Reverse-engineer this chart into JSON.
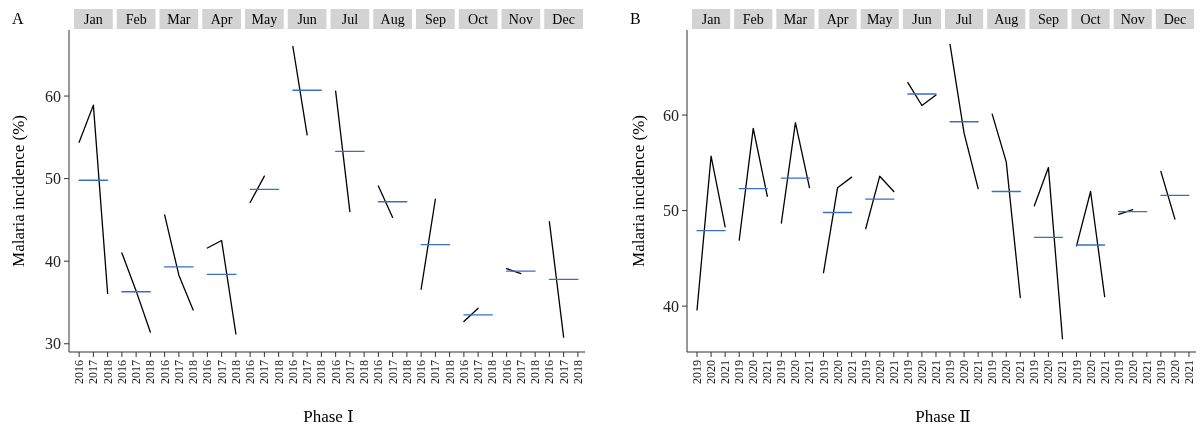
{
  "chart_data": [
    {
      "type": "line",
      "title": "A",
      "annotations": [
        "Jan",
        "Feb",
        "Mar",
        "Apr",
        "May",
        "Jun",
        "Jul",
        "Aug",
        "Sep",
        "Oct",
        "Nov",
        "Dec"
      ],
      "xlabel": "Phase Ⅰ",
      "ylabel": "Malaria incidence (%)",
      "legend": false,
      "grid": false,
      "ylim": [
        29,
        68
      ],
      "yticks": [
        30,
        40,
        50,
        60
      ],
      "categories": [
        "2016",
        "2017",
        "2018",
        "2016",
        "2017",
        "2018",
        "2016",
        "2017",
        "2018",
        "2016",
        "2017",
        "2018",
        "2016",
        "2017",
        "2018",
        "2016",
        "2017",
        "2018",
        "2016",
        "2017",
        "2018",
        "2016",
        "2017",
        "2018",
        "2016",
        "2017",
        "2018",
        "2016",
        "2017",
        "2018",
        "2016",
        "2017",
        "2018",
        "2016",
        "2017",
        "2018"
      ],
      "series": [
        {
          "color": "#000000",
          "values": [
            54.4,
            58.9,
            36.1,
            null,
            null,
            null,
            null,
            null,
            null,
            null,
            null,
            null,
            null,
            null,
            null,
            null,
            null,
            null,
            null,
            null,
            null,
            null,
            null,
            null,
            null,
            null,
            null,
            null,
            null,
            null,
            null,
            null,
            null,
            null,
            null,
            null
          ]
        },
        {
          "color": "#000000",
          "values": [
            null,
            null,
            null,
            41.0,
            36.4,
            31.4,
            null,
            null,
            null,
            null,
            null,
            null,
            null,
            null,
            null,
            null,
            null,
            null,
            null,
            null,
            null,
            null,
            null,
            null,
            null,
            null,
            null,
            null,
            null,
            null,
            null,
            null,
            null,
            null,
            null,
            null
          ]
        },
        {
          "color": "#000000",
          "values": [
            null,
            null,
            null,
            null,
            null,
            null,
            45.6,
            38.3,
            34.1,
            null,
            null,
            null,
            null,
            null,
            null,
            null,
            null,
            null,
            null,
            null,
            null,
            null,
            null,
            null,
            null,
            null,
            null,
            null,
            null,
            null,
            null,
            null,
            null,
            null,
            null,
            null
          ]
        },
        {
          "color": "#000000",
          "values": [
            null,
            null,
            null,
            null,
            null,
            null,
            null,
            null,
            null,
            41.6,
            42.5,
            31.2,
            null,
            null,
            null,
            null,
            null,
            null,
            null,
            null,
            null,
            null,
            null,
            null,
            null,
            null,
            null,
            null,
            null,
            null,
            null,
            null,
            null,
            null,
            null,
            null
          ]
        },
        {
          "color": "#000000",
          "values": [
            null,
            null,
            null,
            null,
            null,
            null,
            null,
            null,
            null,
            null,
            null,
            null,
            47.1,
            50.3,
            null,
            null,
            null,
            null,
            null,
            null,
            null,
            null,
            null,
            null,
            null,
            null,
            null,
            null,
            null,
            null,
            null,
            null,
            null,
            null,
            null,
            null
          ]
        },
        {
          "color": "#000000",
          "values": [
            null,
            null,
            null,
            null,
            null,
            null,
            null,
            null,
            null,
            null,
            null,
            null,
            null,
            null,
            null,
            66.0,
            55.3,
            null,
            null,
            null,
            null,
            null,
            null,
            null,
            null,
            null,
            null,
            null,
            null,
            null,
            null,
            null,
            null,
            null,
            null,
            null
          ]
        },
        {
          "color": "#000000",
          "values": [
            null,
            null,
            null,
            null,
            null,
            null,
            null,
            null,
            null,
            null,
            null,
            null,
            null,
            null,
            null,
            null,
            null,
            null,
            60.6,
            46.0,
            null,
            null,
            null,
            null,
            null,
            null,
            null,
            null,
            null,
            null,
            null,
            null,
            null,
            null,
            null,
            null
          ]
        },
        {
          "color": "#000000",
          "values": [
            null,
            null,
            null,
            null,
            null,
            null,
            null,
            null,
            null,
            null,
            null,
            null,
            null,
            null,
            null,
            null,
            null,
            null,
            null,
            null,
            null,
            49.1,
            45.3,
            null,
            null,
            null,
            null,
            null,
            null,
            null,
            null,
            null,
            null,
            null,
            null,
            null
          ]
        },
        {
          "color": "#000000",
          "values": [
            null,
            null,
            null,
            null,
            null,
            null,
            null,
            null,
            null,
            null,
            null,
            null,
            null,
            null,
            null,
            null,
            null,
            null,
            null,
            null,
            null,
            null,
            null,
            null,
            36.6,
            47.5,
            null,
            null,
            null,
            null,
            null,
            null,
            null,
            null,
            null,
            null
          ]
        },
        {
          "color": "#000000",
          "values": [
            null,
            null,
            null,
            null,
            null,
            null,
            null,
            null,
            null,
            null,
            null,
            null,
            null,
            null,
            null,
            null,
            null,
            null,
            null,
            null,
            null,
            null,
            null,
            null,
            null,
            null,
            null,
            32.7,
            34.3,
            null,
            null,
            null,
            null,
            null,
            null,
            null
          ]
        },
        {
          "color": "#000000",
          "values": [
            null,
            null,
            null,
            null,
            null,
            null,
            null,
            null,
            null,
            null,
            null,
            null,
            null,
            null,
            null,
            null,
            null,
            null,
            null,
            null,
            null,
            null,
            null,
            null,
            null,
            null,
            null,
            null,
            null,
            null,
            39.1,
            38.5,
            null,
            null,
            null,
            null
          ]
        },
        {
          "color": "#000000",
          "values": [
            null,
            null,
            null,
            null,
            null,
            null,
            null,
            null,
            null,
            null,
            null,
            null,
            null,
            null,
            null,
            null,
            null,
            null,
            null,
            null,
            null,
            null,
            null,
            null,
            null,
            null,
            null,
            null,
            null,
            null,
            null,
            null,
            null,
            44.8,
            30.8,
            null
          ]
        },
        {
          "color": "#3a6fc4",
          "values": [
            49.8,
            49.8,
            49.8,
            null,
            null,
            null,
            null,
            null,
            null,
            null,
            null,
            null,
            null,
            null,
            null,
            null,
            null,
            null,
            null,
            null,
            null,
            null,
            null,
            null,
            null,
            null,
            null,
            null,
            null,
            null,
            null,
            null,
            null,
            null,
            null,
            null
          ]
        },
        {
          "color": "#3a6fc4",
          "values": [
            null,
            null,
            null,
            36.3,
            36.3,
            36.3,
            null,
            null,
            null,
            null,
            null,
            null,
            null,
            null,
            null,
            null,
            null,
            null,
            null,
            null,
            null,
            null,
            null,
            null,
            null,
            null,
            null,
            null,
            null,
            null,
            null,
            null,
            null,
            null,
            null,
            null
          ]
        },
        {
          "color": "#3a6fc4",
          "values": [
            null,
            null,
            null,
            null,
            null,
            null,
            39.3,
            39.3,
            39.3,
            null,
            null,
            null,
            null,
            null,
            null,
            null,
            null,
            null,
            null,
            null,
            null,
            null,
            null,
            null,
            null,
            null,
            null,
            null,
            null,
            null,
            null,
            null,
            null,
            null,
            null,
            null
          ]
        },
        {
          "color": "#3a6fc4",
          "values": [
            null,
            null,
            null,
            null,
            null,
            null,
            null,
            null,
            null,
            38.4,
            38.4,
            38.4,
            null,
            null,
            null,
            null,
            null,
            null,
            null,
            null,
            null,
            null,
            null,
            null,
            null,
            null,
            null,
            null,
            null,
            null,
            null,
            null,
            null,
            null,
            null,
            null
          ]
        },
        {
          "color": "#3a6fc4",
          "values": [
            null,
            null,
            null,
            null,
            null,
            null,
            null,
            null,
            null,
            null,
            null,
            null,
            48.7,
            48.7,
            48.7,
            null,
            null,
            null,
            null,
            null,
            null,
            null,
            null,
            null,
            null,
            null,
            null,
            null,
            null,
            null,
            null,
            null,
            null,
            null,
            null,
            null
          ]
        },
        {
          "color": "#3a6fc4",
          "values": [
            null,
            null,
            null,
            null,
            null,
            null,
            null,
            null,
            null,
            null,
            null,
            null,
            null,
            null,
            null,
            60.7,
            60.7,
            60.7,
            null,
            null,
            null,
            null,
            null,
            null,
            null,
            null,
            null,
            null,
            null,
            null,
            null,
            null,
            null,
            null,
            null,
            null
          ]
        },
        {
          "color": "#3a6fc4",
          "values": [
            null,
            null,
            null,
            null,
            null,
            null,
            null,
            null,
            null,
            null,
            null,
            null,
            null,
            null,
            null,
            null,
            null,
            null,
            53.3,
            53.3,
            53.3,
            null,
            null,
            null,
            null,
            null,
            null,
            null,
            null,
            null,
            null,
            null,
            null,
            null,
            null,
            null
          ]
        },
        {
          "color": "#3a6fc4",
          "values": [
            null,
            null,
            null,
            null,
            null,
            null,
            null,
            null,
            null,
            null,
            null,
            null,
            null,
            null,
            null,
            null,
            null,
            null,
            null,
            null,
            null,
            47.2,
            47.2,
            47.2,
            null,
            null,
            null,
            null,
            null,
            null,
            null,
            null,
            null,
            null,
            null,
            null
          ]
        },
        {
          "color": "#3a6fc4",
          "values": [
            null,
            null,
            null,
            null,
            null,
            null,
            null,
            null,
            null,
            null,
            null,
            null,
            null,
            null,
            null,
            null,
            null,
            null,
            null,
            null,
            null,
            null,
            null,
            null,
            42.0,
            42.0,
            42.0,
            null,
            null,
            null,
            null,
            null,
            null,
            null,
            null,
            null
          ]
        },
        {
          "color": "#3a6fc4",
          "values": [
            null,
            null,
            null,
            null,
            null,
            null,
            null,
            null,
            null,
            null,
            null,
            null,
            null,
            null,
            null,
            null,
            null,
            null,
            null,
            null,
            null,
            null,
            null,
            null,
            null,
            null,
            null,
            33.5,
            33.5,
            33.5,
            null,
            null,
            null,
            null,
            null,
            null
          ]
        },
        {
          "color": "#3a6fc4",
          "values": [
            null,
            null,
            null,
            null,
            null,
            null,
            null,
            null,
            null,
            null,
            null,
            null,
            null,
            null,
            null,
            null,
            null,
            null,
            null,
            null,
            null,
            null,
            null,
            null,
            null,
            null,
            null,
            null,
            null,
            null,
            38.8,
            38.8,
            38.8,
            null,
            null,
            null
          ]
        },
        {
          "color": "#3a6fc4",
          "values": [
            null,
            null,
            null,
            null,
            null,
            null,
            null,
            null,
            null,
            null,
            null,
            null,
            null,
            null,
            null,
            null,
            null,
            null,
            null,
            null,
            null,
            null,
            null,
            null,
            null,
            null,
            null,
            null,
            null,
            null,
            null,
            null,
            null,
            37.8,
            37.8,
            37.8
          ]
        }
      ]
    },
    {
      "type": "line",
      "title": "B",
      "annotations": [
        "Jan",
        "Feb",
        "Mar",
        "Apr",
        "May",
        "Jun",
        "Jul",
        "Aug",
        "Sep",
        "Oct",
        "Nov",
        "Dec"
      ],
      "xlabel": "Phase Ⅱ",
      "ylabel": "Malaria incidence (%)",
      "legend": false,
      "grid": false,
      "ylim": [
        35.2,
        68.9
      ],
      "yticks": [
        40,
        50,
        60
      ],
      "categories": [
        "2019",
        "2020",
        "2021",
        "2019",
        "2020",
        "2021",
        "2019",
        "2020",
        "2021",
        "2019",
        "2020",
        "2021",
        "2019",
        "2020",
        "2021",
        "2019",
        "2020",
        "2021",
        "2019",
        "2020",
        "2021",
        "2019",
        "2020",
        "2021",
        "2019",
        "2020",
        "2021",
        "2019",
        "2020",
        "2021",
        "2019",
        "2020",
        "2021",
        "2019",
        "2020",
        "2021"
      ],
      "series": [
        {
          "color": "#000000",
          "values": [
            39.6,
            55.7,
            48.3,
            null,
            null,
            null,
            null,
            null,
            null,
            null,
            null,
            null,
            null,
            null,
            null,
            null,
            null,
            null,
            null,
            null,
            null,
            null,
            null,
            null,
            null,
            null,
            null,
            null,
            null,
            null,
            null,
            null,
            null,
            null,
            null,
            null
          ]
        },
        {
          "color": "#000000",
          "values": [
            null,
            null,
            null,
            46.9,
            58.6,
            51.5,
            null,
            null,
            null,
            null,
            null,
            null,
            null,
            null,
            null,
            null,
            null,
            null,
            null,
            null,
            null,
            null,
            null,
            null,
            null,
            null,
            null,
            null,
            null,
            null,
            null,
            null,
            null,
            null,
            null,
            null
          ]
        },
        {
          "color": "#000000",
          "values": [
            null,
            null,
            null,
            null,
            null,
            null,
            48.7,
            59.2,
            52.4,
            null,
            null,
            null,
            null,
            null,
            null,
            null,
            null,
            null,
            null,
            null,
            null,
            null,
            null,
            null,
            null,
            null,
            null,
            null,
            null,
            null,
            null,
            null,
            null,
            null,
            null,
            null
          ]
        },
        {
          "color": "#000000",
          "values": [
            null,
            null,
            null,
            null,
            null,
            null,
            null,
            null,
            null,
            43.5,
            52.4,
            53.5,
            null,
            null,
            null,
            null,
            null,
            null,
            null,
            null,
            null,
            null,
            null,
            null,
            null,
            null,
            null,
            null,
            null,
            null,
            null,
            null,
            null,
            null,
            null,
            null
          ]
        },
        {
          "color": "#000000",
          "values": [
            null,
            null,
            null,
            null,
            null,
            null,
            null,
            null,
            null,
            null,
            null,
            null,
            48.1,
            53.6,
            52.0,
            null,
            null,
            null,
            null,
            null,
            null,
            null,
            null,
            null,
            null,
            null,
            null,
            null,
            null,
            null,
            null,
            null,
            null,
            null,
            null,
            null
          ]
        },
        {
          "color": "#000000",
          "values": [
            null,
            null,
            null,
            null,
            null,
            null,
            null,
            null,
            null,
            null,
            null,
            null,
            null,
            null,
            null,
            63.4,
            61.0,
            62.1,
            null,
            null,
            null,
            null,
            null,
            null,
            null,
            null,
            null,
            null,
            null,
            null,
            null,
            null,
            null,
            null,
            null,
            null
          ]
        },
        {
          "color": "#000000",
          "values": [
            null,
            null,
            null,
            null,
            null,
            null,
            null,
            null,
            null,
            null,
            null,
            null,
            null,
            null,
            null,
            null,
            null,
            null,
            67.4,
            58.1,
            52.3,
            null,
            null,
            null,
            null,
            null,
            null,
            null,
            null,
            null,
            null,
            null,
            null,
            null,
            null,
            null
          ]
        },
        {
          "color": "#000000",
          "values": [
            null,
            null,
            null,
            null,
            null,
            null,
            null,
            null,
            null,
            null,
            null,
            null,
            null,
            null,
            null,
            null,
            null,
            null,
            null,
            null,
            null,
            60.1,
            55.1,
            40.9,
            null,
            null,
            null,
            null,
            null,
            null,
            null,
            null,
            null,
            null,
            null,
            null
          ]
        },
        {
          "color": "#000000",
          "values": [
            null,
            null,
            null,
            null,
            null,
            null,
            null,
            null,
            null,
            null,
            null,
            null,
            null,
            null,
            null,
            null,
            null,
            null,
            null,
            null,
            null,
            null,
            null,
            null,
            50.5,
            54.5,
            36.6,
            null,
            null,
            null,
            null,
            null,
            null,
            null,
            null,
            null
          ]
        },
        {
          "color": "#000000",
          "values": [
            null,
            null,
            null,
            null,
            null,
            null,
            null,
            null,
            null,
            null,
            null,
            null,
            null,
            null,
            null,
            null,
            null,
            null,
            null,
            null,
            null,
            null,
            null,
            null,
            null,
            null,
            null,
            46.3,
            52.0,
            41.0,
            null,
            null,
            null,
            null,
            null,
            null
          ]
        },
        {
          "color": "#000000",
          "values": [
            null,
            null,
            null,
            null,
            null,
            null,
            null,
            null,
            null,
            null,
            null,
            null,
            null,
            null,
            null,
            null,
            null,
            null,
            null,
            null,
            null,
            null,
            null,
            null,
            null,
            null,
            null,
            null,
            null,
            null,
            49.6,
            50.1,
            null,
            null,
            null,
            null
          ]
        },
        {
          "color": "#000000",
          "values": [
            null,
            null,
            null,
            null,
            null,
            null,
            null,
            null,
            null,
            null,
            null,
            null,
            null,
            null,
            null,
            null,
            null,
            null,
            null,
            null,
            null,
            null,
            null,
            null,
            null,
            null,
            null,
            null,
            null,
            null,
            null,
            null,
            null,
            54.1,
            49.1,
            null
          ]
        },
        {
          "color": "#3a6fc4",
          "values": [
            47.9,
            47.9,
            47.9,
            null,
            null,
            null,
            null,
            null,
            null,
            null,
            null,
            null,
            null,
            null,
            null,
            null,
            null,
            null,
            null,
            null,
            null,
            null,
            null,
            null,
            null,
            null,
            null,
            null,
            null,
            null,
            null,
            null,
            null,
            null,
            null,
            null
          ]
        },
        {
          "color": "#3a6fc4",
          "values": [
            null,
            null,
            null,
            52.3,
            52.3,
            52.3,
            null,
            null,
            null,
            null,
            null,
            null,
            null,
            null,
            null,
            null,
            null,
            null,
            null,
            null,
            null,
            null,
            null,
            null,
            null,
            null,
            null,
            null,
            null,
            null,
            null,
            null,
            null,
            null,
            null,
            null
          ]
        },
        {
          "color": "#3a6fc4",
          "values": [
            null,
            null,
            null,
            null,
            null,
            null,
            53.4,
            53.4,
            53.4,
            null,
            null,
            null,
            null,
            null,
            null,
            null,
            null,
            null,
            null,
            null,
            null,
            null,
            null,
            null,
            null,
            null,
            null,
            null,
            null,
            null,
            null,
            null,
            null,
            null,
            null,
            null
          ]
        },
        {
          "color": "#3a6fc4",
          "values": [
            null,
            null,
            null,
            null,
            null,
            null,
            null,
            null,
            null,
            49.8,
            49.8,
            49.8,
            null,
            null,
            null,
            null,
            null,
            null,
            null,
            null,
            null,
            null,
            null,
            null,
            null,
            null,
            null,
            null,
            null,
            null,
            null,
            null,
            null,
            null,
            null,
            null
          ]
        },
        {
          "color": "#3a6fc4",
          "values": [
            null,
            null,
            null,
            null,
            null,
            null,
            null,
            null,
            null,
            null,
            null,
            null,
            51.2,
            51.2,
            51.2,
            null,
            null,
            null,
            null,
            null,
            null,
            null,
            null,
            null,
            null,
            null,
            null,
            null,
            null,
            null,
            null,
            null,
            null,
            null,
            null,
            null
          ]
        },
        {
          "color": "#3a6fc4",
          "values": [
            null,
            null,
            null,
            null,
            null,
            null,
            null,
            null,
            null,
            null,
            null,
            null,
            null,
            null,
            null,
            62.2,
            62.2,
            62.2,
            null,
            null,
            null,
            null,
            null,
            null,
            null,
            null,
            null,
            null,
            null,
            null,
            null,
            null,
            null,
            null,
            null,
            null
          ]
        },
        {
          "color": "#3a6fc4",
          "values": [
            null,
            null,
            null,
            null,
            null,
            null,
            null,
            null,
            null,
            null,
            null,
            null,
            null,
            null,
            null,
            null,
            null,
            null,
            59.3,
            59.3,
            59.3,
            null,
            null,
            null,
            null,
            null,
            null,
            null,
            null,
            null,
            null,
            null,
            null,
            null,
            null,
            null
          ]
        },
        {
          "color": "#3a6fc4",
          "values": [
            null,
            null,
            null,
            null,
            null,
            null,
            null,
            null,
            null,
            null,
            null,
            null,
            null,
            null,
            null,
            null,
            null,
            null,
            null,
            null,
            null,
            52.0,
            52.0,
            52.0,
            null,
            null,
            null,
            null,
            null,
            null,
            null,
            null,
            null,
            null,
            null,
            null
          ]
        },
        {
          "color": "#3a6fc4",
          "values": [
            null,
            null,
            null,
            null,
            null,
            null,
            null,
            null,
            null,
            null,
            null,
            null,
            null,
            null,
            null,
            null,
            null,
            null,
            null,
            null,
            null,
            null,
            null,
            null,
            47.2,
            47.2,
            47.2,
            null,
            null,
            null,
            null,
            null,
            null,
            null,
            null,
            null
          ]
        },
        {
          "color": "#3a6fc4",
          "values": [
            null,
            null,
            null,
            null,
            null,
            null,
            null,
            null,
            null,
            null,
            null,
            null,
            null,
            null,
            null,
            null,
            null,
            null,
            null,
            null,
            null,
            null,
            null,
            null,
            null,
            null,
            null,
            46.4,
            46.4,
            46.4,
            null,
            null,
            null,
            null,
            null,
            null
          ]
        },
        {
          "color": "#3a6fc4",
          "values": [
            null,
            null,
            null,
            null,
            null,
            null,
            null,
            null,
            null,
            null,
            null,
            null,
            null,
            null,
            null,
            null,
            null,
            null,
            null,
            null,
            null,
            null,
            null,
            null,
            null,
            null,
            null,
            null,
            null,
            null,
            49.9,
            49.9,
            49.9,
            null,
            null,
            null
          ]
        },
        {
          "color": "#3a6fc4",
          "values": [
            null,
            null,
            null,
            null,
            null,
            null,
            null,
            null,
            null,
            null,
            null,
            null,
            null,
            null,
            null,
            null,
            null,
            null,
            null,
            null,
            null,
            null,
            null,
            null,
            null,
            null,
            null,
            null,
            null,
            null,
            null,
            null,
            null,
            51.6,
            51.6,
            51.6
          ]
        }
      ]
    }
  ]
}
